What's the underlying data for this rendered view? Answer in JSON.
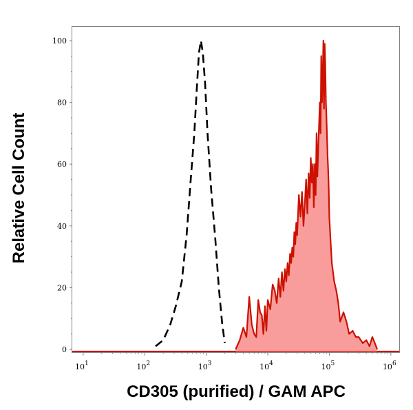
{
  "chart_data": {
    "type": "area",
    "title": "",
    "xlabel": "CD305 (purified) / GAM APC",
    "ylabel": "Relative Cell Count",
    "x_scale": "log",
    "xlim": [
      7,
      1300000
    ],
    "ylim": [
      0,
      105
    ],
    "grid": false,
    "legend": "none",
    "x_ticks": [
      {
        "value": 10,
        "base": "10",
        "exp": "1"
      },
      {
        "value": 100,
        "base": "10",
        "exp": "2"
      },
      {
        "value": 1000,
        "base": "10",
        "exp": "3"
      },
      {
        "value": 10000,
        "base": "10",
        "exp": "4"
      },
      {
        "value": 100000,
        "base": "10",
        "exp": "5"
      },
      {
        "value": 1000000,
        "base": "10",
        "exp": "6"
      }
    ],
    "y_ticks": [
      {
        "value": 0,
        "label": "0"
      },
      {
        "value": 20,
        "label": "20"
      },
      {
        "value": 40,
        "label": "40"
      },
      {
        "value": 60,
        "label": "60"
      },
      {
        "value": 80,
        "label": "80"
      },
      {
        "value": 100,
        "label": "100"
      }
    ],
    "colors": {
      "filled_line": "#cc1100",
      "filled_fill": "#f99c9c",
      "dashed_line": "#000000"
    },
    "series": [
      {
        "style": "dashed",
        "x": [
          150,
          200,
          260,
          320,
          400,
          480,
          560,
          640,
          700,
          760,
          820,
          880,
          960,
          1050,
          1200,
          1400,
          1600,
          1800,
          2000
        ],
        "y": [
          1,
          3,
          8,
          14,
          22,
          37,
          55,
          70,
          84,
          96,
          100,
          96,
          86,
          70,
          52,
          36,
          20,
          9,
          2
        ]
      },
      {
        "style": "filled",
        "x": [
          3000,
          3500,
          4000,
          4500,
          5000,
          5500,
          6000,
          6500,
          7000,
          7500,
          8000,
          8500,
          9000,
          9500,
          10000,
          11000,
          12000,
          13000,
          14000,
          15000,
          16000,
          17000,
          18000,
          19000,
          20000,
          21000,
          22000,
          23000,
          24000,
          25000,
          26000,
          27000,
          28000,
          29000,
          30000,
          32000,
          34000,
          36000,
          38000,
          40000,
          42000,
          44000,
          46000,
          48000,
          50000,
          52000,
          54000,
          56000,
          58000,
          60000,
          62000,
          64000,
          66000,
          68000,
          70000,
          72000,
          74000,
          76000,
          78000,
          80000,
          82000,
          84000,
          86000,
          88000,
          90000,
          92000,
          94000,
          96000,
          98000,
          100000,
          105000,
          110000,
          120000,
          130000,
          140000,
          150000,
          170000,
          190000,
          210000,
          240000,
          270000,
          300000,
          350000,
          400000,
          450000,
          500000,
          550000,
          600000
        ],
        "y": [
          0,
          3,
          7,
          4,
          17,
          8,
          5,
          4,
          16,
          12,
          11,
          5,
          14,
          6,
          16,
          13,
          21,
          19,
          15,
          23,
          17,
          25,
          19,
          26,
          22,
          28,
          24,
          31,
          28,
          33,
          30,
          38,
          34,
          41,
          37,
          50,
          43,
          51,
          40,
          47,
          55,
          44,
          57,
          49,
          62,
          54,
          60,
          46,
          60,
          50,
          70,
          56,
          65,
          72,
          80,
          70,
          95,
          80,
          88,
          100,
          78,
          99,
          92,
          80,
          75,
          68,
          62,
          58,
          52,
          43,
          35,
          28,
          22,
          19,
          15,
          9,
          12,
          9,
          5,
          6,
          4,
          4,
          2,
          3,
          1,
          4,
          2,
          0
        ]
      }
    ]
  }
}
